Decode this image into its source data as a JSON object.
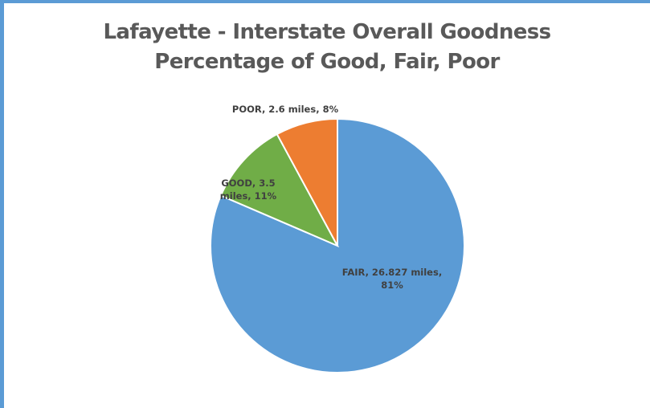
{
  "chart_data": {
    "type": "pie",
    "title_lines": [
      "Lafayette - Interstate Overall Goodness",
      "Percentage of Good, Fair, Poor"
    ],
    "slices": [
      {
        "name": "FAIR",
        "miles": 26.827,
        "percent": 81,
        "color": "#5b9bd5",
        "label_lines": [
          "FAIR, 26.827 miles,",
          "81%"
        ]
      },
      {
        "name": "GOOD",
        "miles": 3.5,
        "percent": 11,
        "color": "#70ad47",
        "label_lines": [
          "GOOD, 3.5",
          "miles, 11%"
        ]
      },
      {
        "name": "POOR",
        "miles": 2.6,
        "percent": 8,
        "color": "#ed7d31",
        "label_lines": [
          "POOR, 2.6 miles, 8%"
        ]
      }
    ],
    "start": "top",
    "direction": "clockwise"
  }
}
